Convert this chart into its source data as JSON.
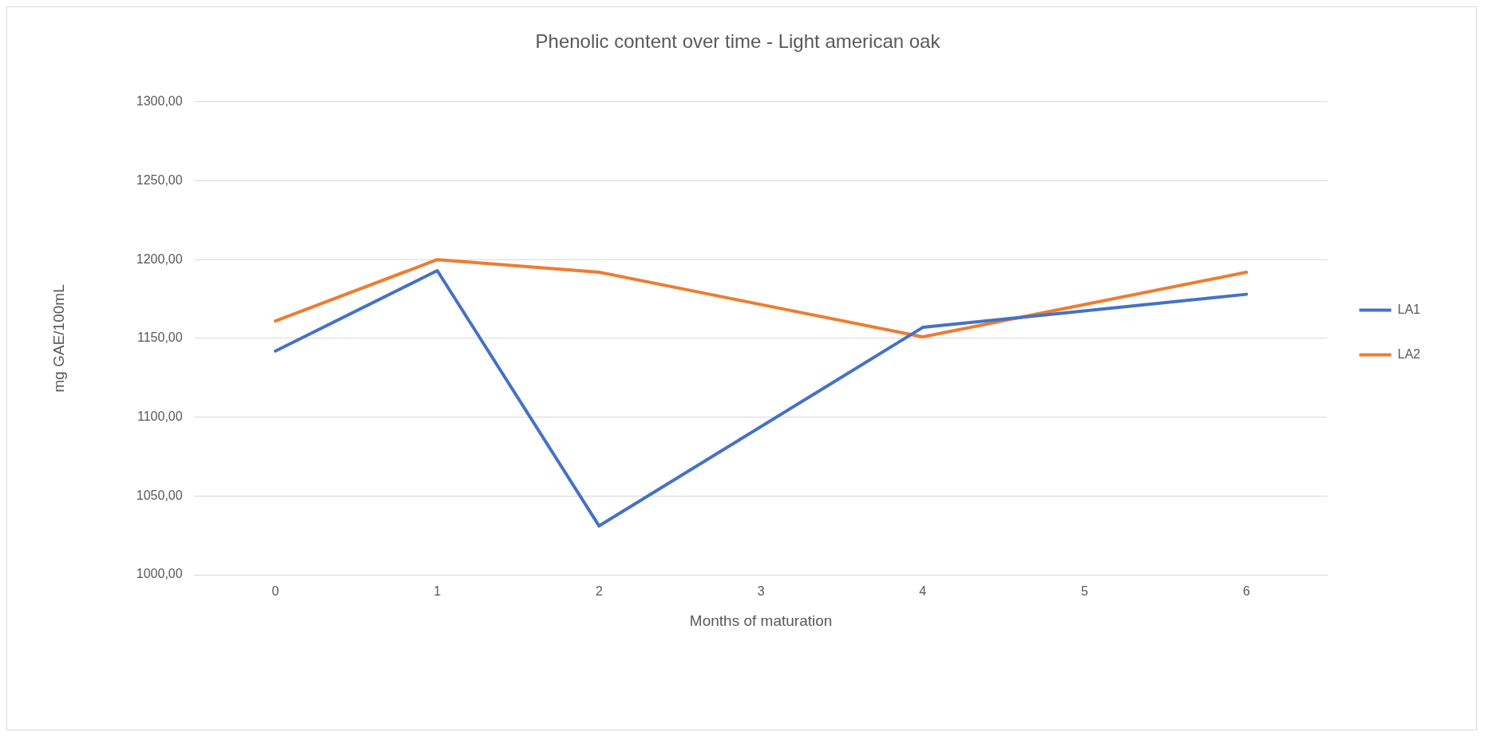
{
  "chart_data": {
    "type": "line",
    "title": "Phenolic content over time - Light american oak",
    "xlabel": "Months of maturation",
    "ylabel": "mg GAE/100mL",
    "categories": [
      "0",
      "1",
      "2",
      "3",
      "4",
      "5",
      "6"
    ],
    "series": [
      {
        "name": "LA1",
        "color": "#4472c4",
        "values": [
          1142,
          1193,
          1031,
          null,
          1157,
          null,
          1178
        ]
      },
      {
        "name": "LA2",
        "color": "#ed7d31",
        "values": [
          1161,
          1200,
          1192,
          null,
          1151,
          null,
          1192
        ]
      }
    ],
    "ylim": [
      1000,
      1300
    ],
    "yticks": [
      {
        "value": 1000,
        "label": "1000,00"
      },
      {
        "value": 1050,
        "label": "1050,00"
      },
      {
        "value": 1100,
        "label": "1100,00"
      },
      {
        "value": 1150,
        "label": "1150,00"
      },
      {
        "value": 1200,
        "label": "1200,00"
      },
      {
        "value": 1250,
        "label": "1250,00"
      },
      {
        "value": 1300,
        "label": "1300,00"
      }
    ],
    "grid": "y",
    "legend": "right",
    "marker": "none",
    "line_style": "solid"
  }
}
